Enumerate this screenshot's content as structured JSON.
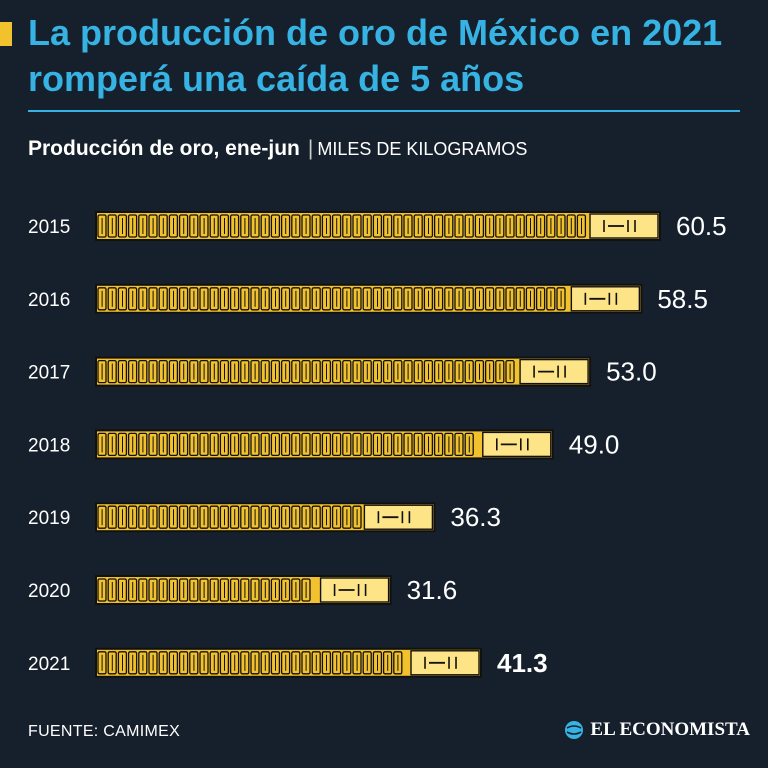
{
  "header": {
    "title": "La producción de oro de México en 2021 romperá una caída de 5 años",
    "subtitle_main": "Producción de oro, ene-jun",
    "subtitle_sep": "|",
    "subtitle_unit": "MILES DE KILOGRAMOS"
  },
  "footer": {
    "source": "FUENTE: CAMIMEX",
    "brand": "EL ECONOMISTA"
  },
  "colors": {
    "background": "#16202c",
    "title": "#36b3e3",
    "gold": "#f2c12e",
    "gold_light": "#fde587",
    "outline": "#111111"
  },
  "chart_data": {
    "type": "bar",
    "orientation": "horizontal",
    "title": "Producción de oro, ene-jun",
    "unit": "MILES DE KILOGRAMOS",
    "categories": [
      "2015",
      "2016",
      "2017",
      "2018",
      "2019",
      "2020",
      "2021"
    ],
    "values": [
      60.5,
      58.5,
      53.0,
      49.0,
      36.3,
      31.6,
      41.3
    ],
    "value_labels": [
      "60.5",
      "58.5",
      "53.0",
      "49.0",
      "36.3",
      "31.6",
      "41.3"
    ],
    "highlight": "2021",
    "xlim": [
      0,
      60.5
    ],
    "grid": false
  }
}
